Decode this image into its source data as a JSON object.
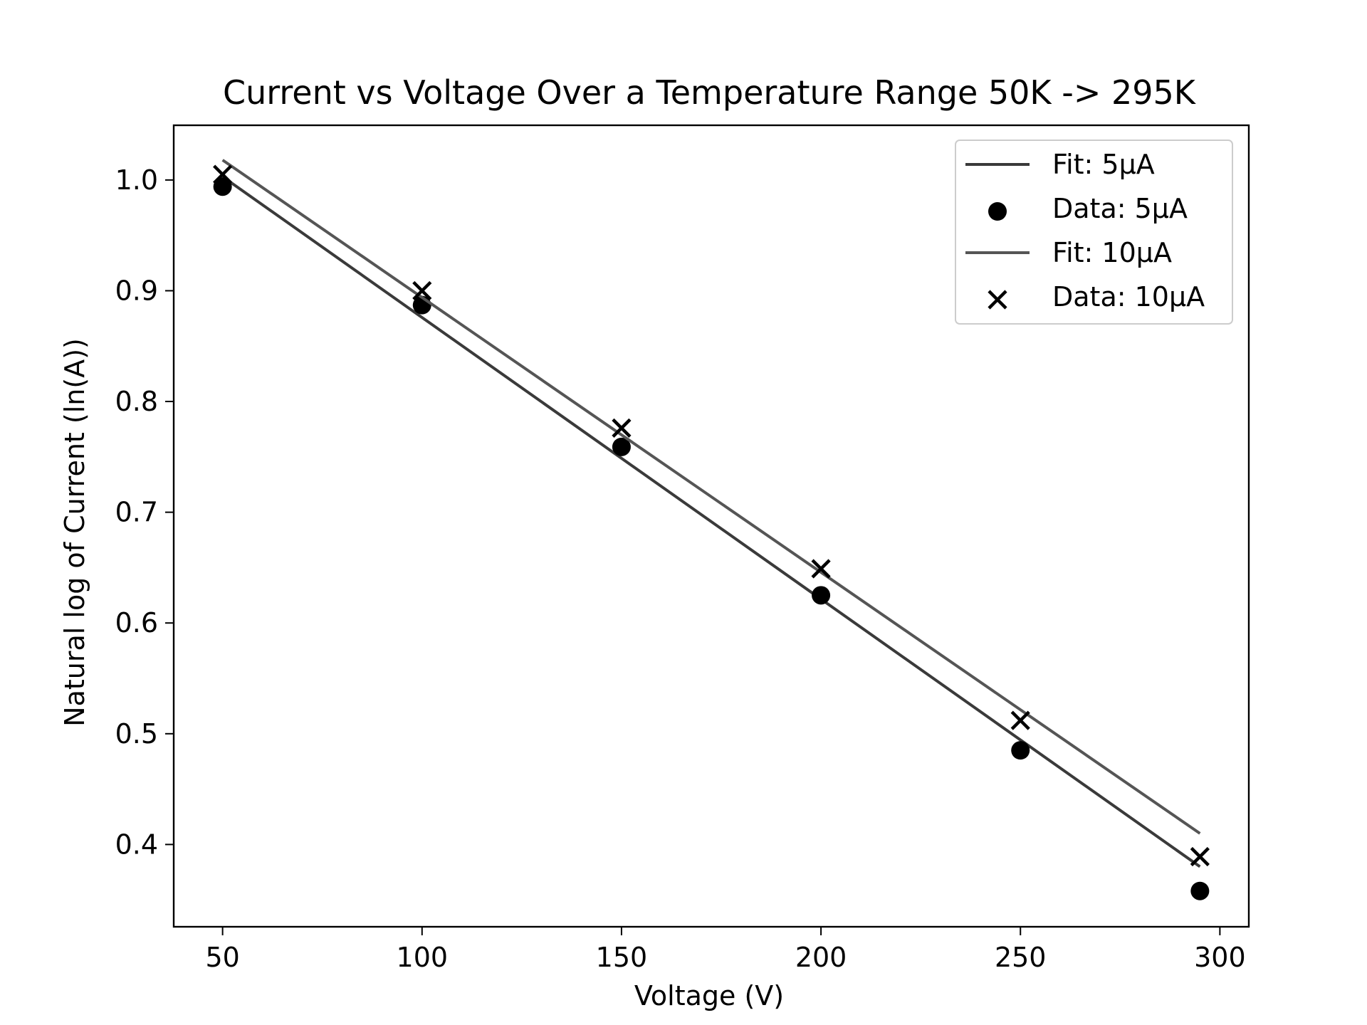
{
  "chart_data": {
    "type": "scatter",
    "title": "Current vs Voltage Over a Temperature Range 50K -> 295K",
    "xlabel": "Voltage (V)",
    "ylabel": "Natural log of Current (ln(A))",
    "xlim": [
      37.75,
      307.25
    ],
    "ylim": [
      0.3257,
      1.0494
    ],
    "x_ticks": [
      50,
      100,
      150,
      200,
      250,
      300
    ],
    "y_ticks": [
      0.4,
      0.5,
      0.6,
      0.7,
      0.8,
      0.9,
      1.0
    ],
    "x_tick_labels": [
      "50",
      "100",
      "150",
      "200",
      "250",
      "300"
    ],
    "y_tick_labels": [
      "0.4",
      "0.5",
      "0.6",
      "0.7",
      "0.8",
      "0.9",
      "1.0"
    ],
    "grid": false,
    "legend_position": "top-right",
    "series": [
      {
        "name": "Fit: 5μA",
        "kind": "line",
        "color": "#3a3a3a",
        "x": [
          50,
          295
        ],
        "y": [
          1.003,
          0.38
        ]
      },
      {
        "name": "Data: 5μA",
        "kind": "scatter",
        "marker": "circle",
        "color": "#000000",
        "x": [
          50,
          100,
          150,
          200,
          250,
          295
        ],
        "y": [
          0.994,
          0.887,
          0.759,
          0.625,
          0.485,
          0.358
        ]
      },
      {
        "name": "Fit: 10μA",
        "kind": "line",
        "color": "#555555",
        "x": [
          50,
          295
        ],
        "y": [
          1.018,
          0.41
        ]
      },
      {
        "name": "Data: 10μA",
        "kind": "scatter",
        "marker": "x",
        "color": "#000000",
        "x": [
          50,
          100,
          150,
          200,
          250,
          295
        ],
        "y": [
          1.005,
          0.9,
          0.776,
          0.649,
          0.512,
          0.389
        ]
      }
    ]
  }
}
